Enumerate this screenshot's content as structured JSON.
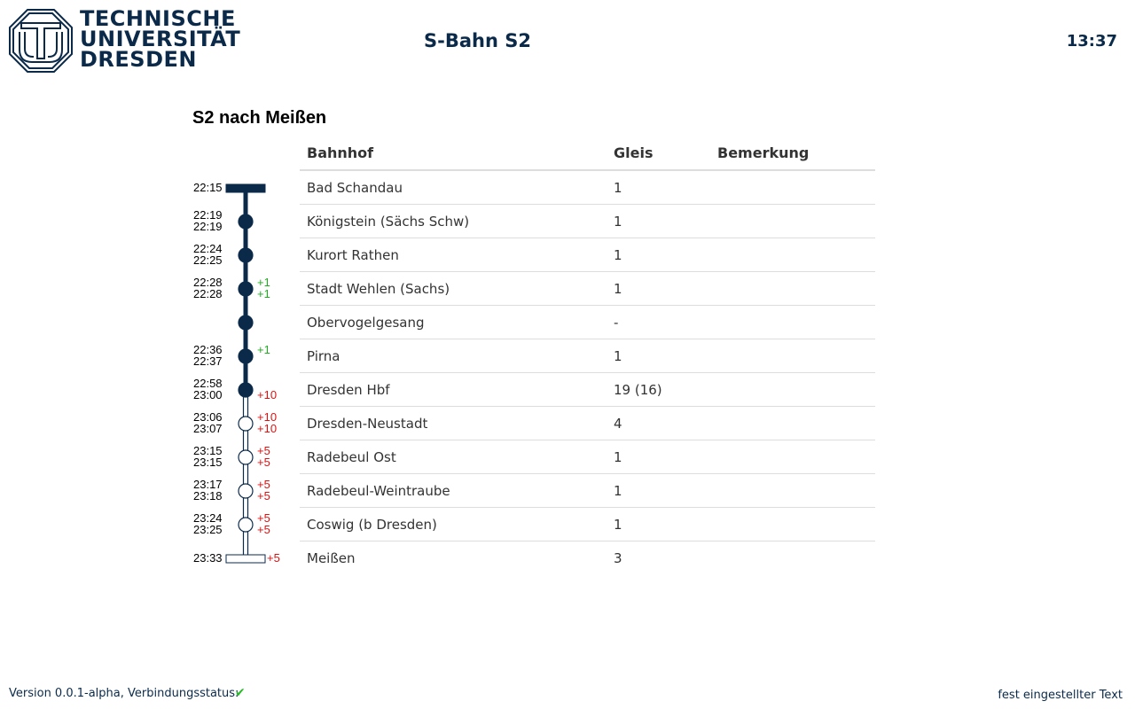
{
  "header": {
    "logo_lines": [
      "TECHNISCHE",
      "UNIVERSITÄT",
      "DRESDEN"
    ],
    "title": "S-Bahn S2",
    "clock": "13:37"
  },
  "main": {
    "section_title": "S2 nach Meißen",
    "columns": [
      "Bahnhof",
      "Gleis",
      "Bemerkung"
    ]
  },
  "colors": {
    "brand": "#0b2a4a",
    "delay_ok": "#22aa22",
    "delay_late": "#dd1111",
    "divider": "#dddddd"
  },
  "stops": [
    {
      "station": "Bad Schandau",
      "track": "1",
      "remark": "",
      "arr": "",
      "dep": "22:15",
      "arr_delay": "",
      "dep_delay": "",
      "kind": "start",
      "passed": true
    },
    {
      "station": "Königstein (Sächs Schw)",
      "track": "1",
      "remark": "",
      "arr": "22:19",
      "dep": "22:19",
      "arr_delay": "",
      "dep_delay": "",
      "kind": "stop",
      "passed": true
    },
    {
      "station": "Kurort Rathen",
      "track": "1",
      "remark": "",
      "arr": "22:24",
      "dep": "22:25",
      "arr_delay": "",
      "dep_delay": "",
      "kind": "stop",
      "passed": true
    },
    {
      "station": "Stadt Wehlen (Sachs)",
      "track": "1",
      "remark": "",
      "arr": "22:28",
      "dep": "22:28",
      "arr_delay": "+1",
      "dep_delay": "+1",
      "kind": "stop",
      "passed": true
    },
    {
      "station": "Obervogelgesang",
      "track": "-",
      "remark": "",
      "arr": "",
      "dep": "",
      "arr_delay": "",
      "dep_delay": "",
      "kind": "stop",
      "passed": true
    },
    {
      "station": "Pirna",
      "track": "1",
      "remark": "",
      "arr": "22:36",
      "dep": "22:37",
      "arr_delay": "+1",
      "dep_delay": "",
      "kind": "stop",
      "passed": true
    },
    {
      "station": "Dresden Hbf",
      "track": "19 (16)",
      "remark": "",
      "arr": "22:58",
      "dep": "23:00",
      "arr_delay": "",
      "dep_delay": "+10",
      "kind": "stop",
      "passed": true
    },
    {
      "station": "Dresden-Neustadt",
      "track": "4",
      "remark": "",
      "arr": "23:06",
      "dep": "23:07",
      "arr_delay": "+10",
      "dep_delay": "+10",
      "kind": "stop",
      "passed": false
    },
    {
      "station": "Radebeul Ost",
      "track": "1",
      "remark": "",
      "arr": "23:15",
      "dep": "23:15",
      "arr_delay": "+5",
      "dep_delay": "+5",
      "kind": "stop",
      "passed": false
    },
    {
      "station": "Radebeul-Weintraube",
      "track": "1",
      "remark": "",
      "arr": "23:17",
      "dep": "23:18",
      "arr_delay": "+5",
      "dep_delay": "+5",
      "kind": "stop",
      "passed": false
    },
    {
      "station": "Coswig (b Dresden)",
      "track": "1",
      "remark": "",
      "arr": "23:24",
      "dep": "23:25",
      "arr_delay": "+5",
      "dep_delay": "+5",
      "kind": "stop",
      "passed": false
    },
    {
      "station": "Meißen",
      "track": "3",
      "remark": "",
      "arr": "23:33",
      "dep": "",
      "arr_delay": "+5",
      "dep_delay": "",
      "kind": "end",
      "passed": false
    }
  ],
  "footer": {
    "status_text": "Version 0.0.1-alpha, Verbindungsstatus:",
    "status_icon": "✔",
    "right_text": "fest eingestellter Text"
  }
}
